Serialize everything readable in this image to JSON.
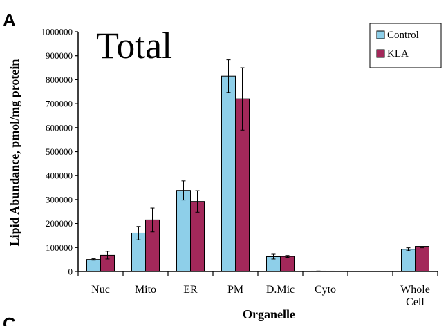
{
  "panel_labels": {
    "top": "A",
    "bottom": "C"
  },
  "colors": {
    "control": "#8ecfe9",
    "kla": "#a3285a",
    "axis": "#000000"
  },
  "chart_data": {
    "type": "bar",
    "title": "Total",
    "xlabel": "Organelle",
    "ylabel": "Lipid Abundance, pmol/mg protein",
    "ylim": [
      0,
      1000000
    ],
    "yticks": [
      0,
      100000,
      200000,
      300000,
      400000,
      500000,
      600000,
      700000,
      800000,
      900000,
      1000000
    ],
    "ytick_labels": [
      "0",
      "100000",
      "200000",
      "300000",
      "400000",
      "500000",
      "600000",
      "700000",
      "800000",
      "900000",
      "1000000"
    ],
    "categories": [
      "Nuc",
      "Mito",
      "ER",
      "PM",
      "D.Mic",
      "Cyto",
      "",
      "Whole Cell"
    ],
    "category_label_lines": [
      [
        "Nuc"
      ],
      [
        "Mito"
      ],
      [
        "ER"
      ],
      [
        "PM"
      ],
      [
        "D.Mic"
      ],
      [
        "Cyto"
      ],
      [],
      [
        "Whole",
        "Cell"
      ]
    ],
    "series": [
      {
        "name": "Control",
        "color": "#8ecfe9",
        "values": [
          50000,
          160000,
          338000,
          815000,
          62000,
          1500,
          null,
          93000
        ],
        "errors": [
          3000,
          28000,
          40000,
          68000,
          10000,
          500,
          null,
          6000
        ]
      },
      {
        "name": "KLA",
        "color": "#a3285a",
        "values": [
          68000,
          215000,
          292000,
          720000,
          63000,
          1000,
          null,
          105000
        ],
        "errors": [
          16000,
          50000,
          45000,
          130000,
          4000,
          500,
          null,
          6000
        ]
      }
    ],
    "grid": false,
    "legend": "top-right"
  }
}
